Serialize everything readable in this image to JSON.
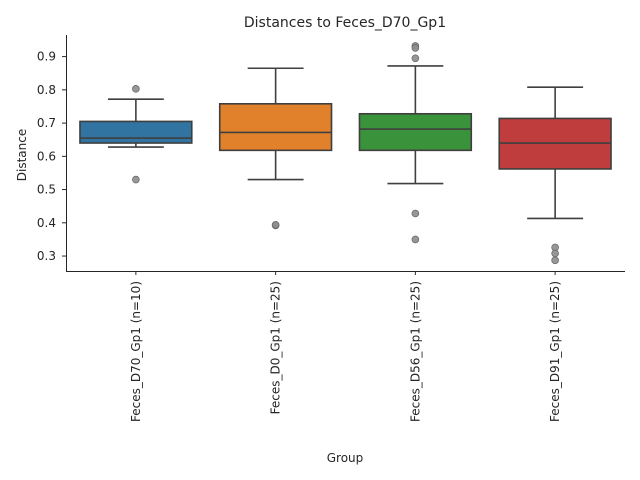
{
  "chart_data": {
    "type": "box",
    "title": "Distances to Feces_D70_Gp1",
    "xlabel": "Group",
    "ylabel": "Distance",
    "ylim": [
      0.255,
      0.965
    ],
    "yticks": [
      0.3,
      0.4,
      0.5,
      0.6,
      0.7,
      0.8,
      0.9
    ],
    "grid": false,
    "legend": "none",
    "categories": [
      "Feces_D70_Gp1 (n=10)",
      "Feces_D0_Gp1 (n=25)",
      "Feces_D56_Gp1 (n=25)",
      "Feces_D91_Gp1 (n=25)"
    ],
    "boxes": [
      {
        "category": "Feces_D70_Gp1 (n=10)",
        "color": "#3274a1",
        "whisker_low": 0.628,
        "q1": 0.64,
        "median": 0.655,
        "q3": 0.705,
        "whisker_high": 0.772,
        "outliers": [
          0.803,
          0.53
        ]
      },
      {
        "category": "Feces_D0_Gp1 (n=25)",
        "color": "#e1812c",
        "whisker_low": 0.53,
        "q1": 0.618,
        "median": 0.672,
        "q3": 0.758,
        "whisker_high": 0.865,
        "outliers": [
          0.392,
          0.394
        ]
      },
      {
        "category": "Feces_D56_Gp1 (n=25)",
        "color": "#3a923a",
        "whisker_low": 0.518,
        "q1": 0.618,
        "median": 0.682,
        "q3": 0.728,
        "whisker_high": 0.872,
        "outliers": [
          0.932,
          0.926,
          0.895,
          0.428,
          0.35
        ]
      },
      {
        "category": "Feces_D91_Gp1 (n=25)",
        "color": "#c03d3e",
        "whisker_low": 0.413,
        "q1": 0.562,
        "median": 0.64,
        "q3": 0.714,
        "whisker_high": 0.808,
        "outliers": [
          0.326,
          0.308,
          0.287
        ]
      }
    ]
  }
}
